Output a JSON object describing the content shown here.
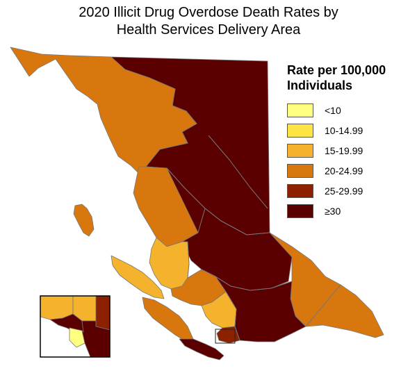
{
  "title": {
    "line1": "2020 Illicit Drug Overdose Death Rates by",
    "line2": "Health Services Delivery Area"
  },
  "legend": {
    "title_line1": "Rate per 100,000",
    "title_line2": "Individuals",
    "classes": [
      {
        "label": "<10",
        "color": "#ffff80"
      },
      {
        "label": "10-14.99",
        "color": "#fce444"
      },
      {
        "label": "15-19.99",
        "color": "#f5b22c"
      },
      {
        "label": "20-24.99",
        "color": "#d9770f"
      },
      {
        "label": "25-29.99",
        "color": "#8c2100"
      },
      {
        "label": "≥30",
        "color": "#5a0000"
      }
    ]
  },
  "map": {
    "border_color": "#777777",
    "water_color": "#ffffff",
    "regions_by_class": {
      "20-24.99": [
        "northwest",
        "west-central",
        "kootenay-east",
        "sunshine-coast"
      ],
      "≥30": [
        "northeast",
        "northern-interior",
        "thompson-cariboo",
        "okanagan",
        "south-island"
      ],
      "15-19.99": [
        "north-island",
        "fraser-north"
      ],
      "25-29.99": [
        "fraser-east"
      ]
    },
    "inset": {
      "regions_by_class": {
        "15-19.99": [
          "inset-north-shore",
          "inset-fraser-north"
        ],
        "25-29.99": [
          "inset-fraser-east"
        ],
        "≥30": [
          "inset-vancouver",
          "inset-south"
        ],
        "<10": [
          "inset-richmond"
        ]
      }
    }
  }
}
